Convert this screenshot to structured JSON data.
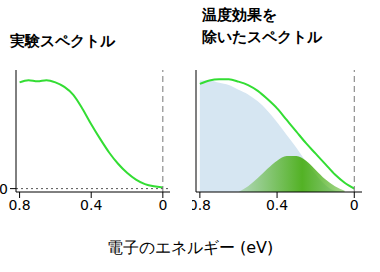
{
  "xlabel": "電子のエネルギー (eV)",
  "chart_data": [
    {
      "type": "line",
      "title": "実験スペクトル",
      "x": [
        0.8,
        0.75,
        0.7,
        0.65,
        0.6,
        0.55,
        0.5,
        0.45,
        0.4,
        0.35,
        0.3,
        0.25,
        0.2,
        0.15,
        0.1,
        0.05,
        0
      ],
      "series": [
        {
          "type": "line",
          "color": "#33dd33",
          "values": [
            0.94,
            0.96,
            0.95,
            0.96,
            0.94,
            0.9,
            0.83,
            0.71,
            0.57,
            0.44,
            0.32,
            0.22,
            0.14,
            0.08,
            0.04,
            0.02,
            0.01
          ]
        }
      ],
      "xlim": [
        0.82,
        -0.04
      ],
      "xticks": [
        0.8,
        0.4,
        0
      ],
      "ylim": [
        -0.03,
        1.05
      ],
      "yticks": [
        0
      ],
      "vline": 0,
      "hline": 0
    },
    {
      "type": "line",
      "title": "温度効果を\n除いたスペクトル",
      "x": [
        0.8,
        0.75,
        0.7,
        0.65,
        0.6,
        0.55,
        0.5,
        0.45,
        0.4,
        0.35,
        0.3,
        0.25,
        0.2,
        0.15,
        0.1,
        0.05,
        0
      ],
      "series": [
        {
          "type": "area",
          "color": "#d6e6f2",
          "values": [
            0.96,
            0.96,
            0.94,
            0.92,
            0.88,
            0.84,
            0.78,
            0.7,
            0.6,
            0.49,
            0.38,
            0.26,
            0.15,
            0.06,
            0.01,
            0,
            0
          ]
        },
        {
          "type": "area",
          "color": "#4caf1a",
          "values": [
            null,
            null,
            null,
            null,
            0,
            0.05,
            0.12,
            0.2,
            0.27,
            0.31,
            0.31,
            0.27,
            0.19,
            0.11,
            0.05,
            0.01,
            null
          ]
        },
        {
          "type": "line",
          "color": "#33dd33",
          "values": [
            0.93,
            0.96,
            0.97,
            0.97,
            0.95,
            0.92,
            0.87,
            0.8,
            0.72,
            0.62,
            0.52,
            0.42,
            0.33,
            0.24,
            0.15,
            0.08,
            0.03
          ]
        }
      ],
      "xlim": [
        0.82,
        -0.04
      ],
      "xticks": [
        0.8,
        0.4,
        0
      ],
      "ylim": [
        0,
        1.05
      ],
      "tick_labels": "x",
      "vline": 0
    }
  ]
}
